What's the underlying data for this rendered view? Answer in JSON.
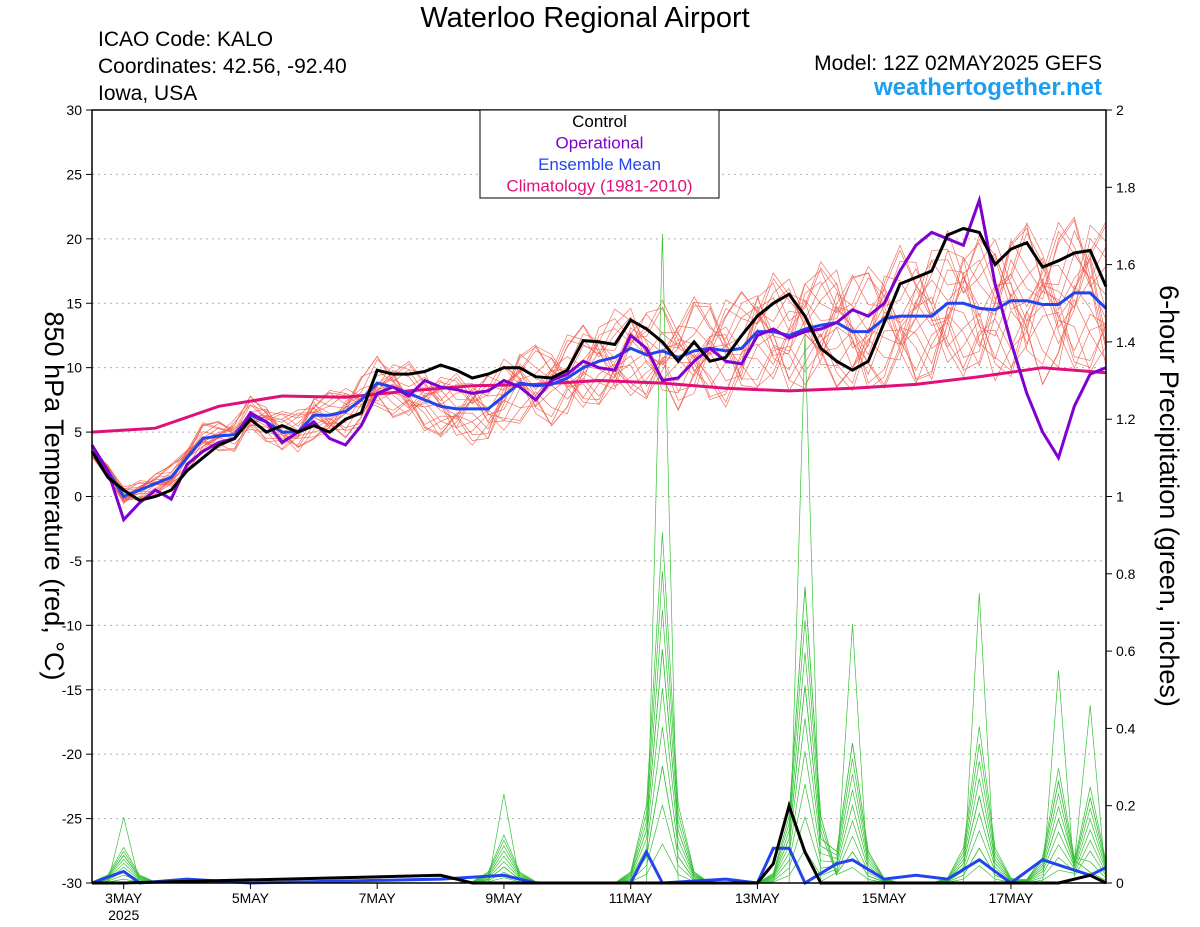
{
  "header": {
    "title": "Waterloo Regional Airport",
    "icao": "ICAO Code: KALO",
    "coords": "Coordinates: 42.56, -92.40",
    "region": "Iowa, USA",
    "model": "Model: 12Z 02MAY2025 GEFS",
    "site": "weathertogether.net"
  },
  "colors": {
    "members": "#f05a4a",
    "precip_members": "#35c235",
    "control": "#000000",
    "operational": "#8000d0",
    "mean": "#2244ee",
    "climatology": "#e0107a"
  },
  "chart_data": {
    "type": "line",
    "ylabel": "850 hPa Temperature (red, °C)",
    "y2label": "6-hour Precipitation (green, inches)",
    "ylim": [
      -30,
      30
    ],
    "y2lim": [
      0,
      2
    ],
    "xlim": [
      "2025-05-02T12:00",
      "2025-05-18T12:00"
    ],
    "yticks": [
      "30",
      "25",
      "20",
      "15",
      "10",
      "5",
      "0",
      "-5",
      "-10",
      "-15",
      "-20",
      "-25",
      "-30"
    ],
    "y2ticks": [
      "2",
      "1.8",
      "1.6",
      "1.4",
      "1.2",
      "1",
      "0.8",
      "0.6",
      "0.4",
      "0.2",
      "0"
    ],
    "xticks": [
      {
        "date": "2025-05-03",
        "label": "3MAY",
        "sub": "2025"
      },
      {
        "date": "2025-05-05",
        "label": "5MAY",
        "sub": ""
      },
      {
        "date": "2025-05-07",
        "label": "7MAY",
        "sub": ""
      },
      {
        "date": "2025-05-09",
        "label": "9MAY",
        "sub": ""
      },
      {
        "date": "2025-05-11",
        "label": "11MAY",
        "sub": ""
      },
      {
        "date": "2025-05-13",
        "label": "13MAY",
        "sub": ""
      },
      {
        "date": "2025-05-15",
        "label": "15MAY",
        "sub": ""
      },
      {
        "date": "2025-05-17",
        "label": "17MAY",
        "sub": ""
      }
    ],
    "grid": true,
    "legend_position": "top-center",
    "legend": [
      "Control",
      "Operational",
      "Ensemble Mean",
      "Climatology (1981-2010)"
    ],
    "temperature": {
      "control": [
        [
          "2025-05-02T12:00",
          3.5
        ],
        [
          "2025-05-02T18:00",
          1.5
        ],
        [
          "2025-05-03T00:00",
          0.5
        ],
        [
          "2025-05-03T06:00",
          -0.3
        ],
        [
          "2025-05-03T12:00",
          0.0
        ],
        [
          "2025-05-03T18:00",
          0.5
        ],
        [
          "2025-05-04T00:00",
          2.0
        ],
        [
          "2025-05-04T06:00",
          3.0
        ],
        [
          "2025-05-04T12:00",
          4.0
        ],
        [
          "2025-05-04T18:00",
          4.5
        ],
        [
          "2025-05-05T00:00",
          6.0
        ],
        [
          "2025-05-05T06:00",
          5.0
        ],
        [
          "2025-05-05T12:00",
          5.5
        ],
        [
          "2025-05-05T18:00",
          5.0
        ],
        [
          "2025-05-06T00:00",
          5.5
        ],
        [
          "2025-05-06T06:00",
          5.0
        ],
        [
          "2025-05-06T12:00",
          6.0
        ],
        [
          "2025-05-06T18:00",
          6.5
        ],
        [
          "2025-05-07T00:00",
          9.8
        ],
        [
          "2025-05-07T06:00",
          9.5
        ],
        [
          "2025-05-07T12:00",
          9.5
        ],
        [
          "2025-05-07T18:00",
          9.7
        ],
        [
          "2025-05-08T00:00",
          10.2
        ],
        [
          "2025-05-08T06:00",
          9.8
        ],
        [
          "2025-05-08T12:00",
          9.2
        ],
        [
          "2025-05-08T18:00",
          9.5
        ],
        [
          "2025-05-09T00:00",
          10.0
        ],
        [
          "2025-05-09T06:00",
          10.0
        ],
        [
          "2025-05-09T12:00",
          9.3
        ],
        [
          "2025-05-09T18:00",
          9.2
        ],
        [
          "2025-05-10T00:00",
          9.8
        ],
        [
          "2025-05-10T06:00",
          12.1
        ],
        [
          "2025-05-10T12:00",
          12.0
        ],
        [
          "2025-05-10T18:00",
          11.8
        ],
        [
          "2025-05-11T00:00",
          13.7
        ],
        [
          "2025-05-11T06:00",
          13.0
        ],
        [
          "2025-05-11T12:00",
          12.0
        ],
        [
          "2025-05-11T18:00",
          10.5
        ],
        [
          "2025-05-12T00:00",
          12.0
        ],
        [
          "2025-05-12T06:00",
          10.5
        ],
        [
          "2025-05-12T12:00",
          10.8
        ],
        [
          "2025-05-12T18:00",
          12.5
        ],
        [
          "2025-05-13T00:00",
          14.0
        ],
        [
          "2025-05-13T06:00",
          15.0
        ],
        [
          "2025-05-13T12:00",
          15.7
        ],
        [
          "2025-05-13T18:00",
          14.0
        ],
        [
          "2025-05-14T00:00",
          11.5
        ],
        [
          "2025-05-14T06:00",
          10.5
        ],
        [
          "2025-05-14T12:00",
          9.8
        ],
        [
          "2025-05-14T18:00",
          10.5
        ],
        [
          "2025-05-15T00:00",
          13.5
        ],
        [
          "2025-05-15T06:00",
          16.5
        ],
        [
          "2025-05-15T12:00",
          17.0
        ],
        [
          "2025-05-15T18:00",
          17.5
        ],
        [
          "2025-05-16T00:00",
          20.3
        ],
        [
          "2025-05-16T06:00",
          20.8
        ],
        [
          "2025-05-16T12:00",
          20.5
        ],
        [
          "2025-05-16T18:00",
          18.0
        ],
        [
          "2025-05-17T00:00",
          19.2
        ],
        [
          "2025-05-17T06:00",
          19.7
        ],
        [
          "2025-05-17T12:00",
          17.8
        ],
        [
          "2025-05-17T18:00",
          18.3
        ],
        [
          "2025-05-18T00:00",
          18.9
        ],
        [
          "2025-05-18T06:00",
          19.1
        ],
        [
          "2025-05-18T12:00",
          16.3
        ]
      ],
      "operational": [
        [
          "2025-05-02T12:00",
          4.0
        ],
        [
          "2025-05-02T18:00",
          2.0
        ],
        [
          "2025-05-03T00:00",
          -1.8
        ],
        [
          "2025-05-03T06:00",
          -0.5
        ],
        [
          "2025-05-03T12:00",
          0.5
        ],
        [
          "2025-05-03T18:00",
          -0.2
        ],
        [
          "2025-05-04T00:00",
          2.5
        ],
        [
          "2025-05-04T06:00",
          3.5
        ],
        [
          "2025-05-04T12:00",
          4.2
        ],
        [
          "2025-05-04T18:00",
          4.5
        ],
        [
          "2025-05-05T00:00",
          6.5
        ],
        [
          "2025-05-05T06:00",
          5.8
        ],
        [
          "2025-05-05T12:00",
          4.2
        ],
        [
          "2025-05-05T18:00",
          5.0
        ],
        [
          "2025-05-06T00:00",
          5.8
        ],
        [
          "2025-05-06T06:00",
          4.5
        ],
        [
          "2025-05-06T12:00",
          4.0
        ],
        [
          "2025-05-06T18:00",
          5.5
        ],
        [
          "2025-05-07T00:00",
          8.0
        ],
        [
          "2025-05-07T06:00",
          8.5
        ],
        [
          "2025-05-07T12:00",
          7.8
        ],
        [
          "2025-05-07T18:00",
          9.0
        ],
        [
          "2025-05-08T00:00",
          8.5
        ],
        [
          "2025-05-08T06:00",
          8.3
        ],
        [
          "2025-05-08T12:00",
          8.0
        ],
        [
          "2025-05-08T18:00",
          8.2
        ],
        [
          "2025-05-09T00:00",
          9.0
        ],
        [
          "2025-05-09T06:00",
          8.5
        ],
        [
          "2025-05-09T12:00",
          7.5
        ],
        [
          "2025-05-09T18:00",
          9.0
        ],
        [
          "2025-05-10T00:00",
          9.5
        ],
        [
          "2025-05-10T06:00",
          10.5
        ],
        [
          "2025-05-10T12:00",
          10.0
        ],
        [
          "2025-05-10T18:00",
          9.8
        ],
        [
          "2025-05-11T00:00",
          12.5
        ],
        [
          "2025-05-11T06:00",
          11.5
        ],
        [
          "2025-05-11T12:00",
          9.0
        ],
        [
          "2025-05-11T18:00",
          9.2
        ],
        [
          "2025-05-12T00:00",
          10.5
        ],
        [
          "2025-05-12T06:00",
          11.5
        ],
        [
          "2025-05-12T12:00",
          10.5
        ],
        [
          "2025-05-12T18:00",
          10.3
        ],
        [
          "2025-05-13T00:00",
          12.5
        ],
        [
          "2025-05-13T06:00",
          13.0
        ],
        [
          "2025-05-13T12:00",
          12.3
        ],
        [
          "2025-05-13T18:00",
          12.8
        ],
        [
          "2025-05-14T00:00",
          13.0
        ],
        [
          "2025-05-14T06:00",
          13.5
        ],
        [
          "2025-05-14T12:00",
          14.5
        ],
        [
          "2025-05-14T18:00",
          14.0
        ],
        [
          "2025-05-15T00:00",
          15.0
        ],
        [
          "2025-05-15T06:00",
          17.5
        ],
        [
          "2025-05-15T12:00",
          19.5
        ],
        [
          "2025-05-15T18:00",
          20.5
        ],
        [
          "2025-05-16T00:00",
          20.0
        ],
        [
          "2025-05-16T06:00",
          19.5
        ],
        [
          "2025-05-16T12:00",
          23.0
        ],
        [
          "2025-05-16T18:00",
          16.5
        ],
        [
          "2025-05-17T00:00",
          12.0
        ],
        [
          "2025-05-17T06:00",
          8.0
        ],
        [
          "2025-05-17T12:00",
          5.0
        ],
        [
          "2025-05-17T18:00",
          3.0
        ],
        [
          "2025-05-18T00:00",
          7.0
        ],
        [
          "2025-05-18T06:00",
          9.5
        ],
        [
          "2025-05-18T12:00",
          10.0
        ]
      ],
      "mean": [
        [
          "2025-05-02T12:00",
          3.5
        ],
        [
          "2025-05-02T18:00",
          2.0
        ],
        [
          "2025-05-03T00:00",
          0.0
        ],
        [
          "2025-05-03T06:00",
          0.5
        ],
        [
          "2025-05-03T12:00",
          1.0
        ],
        [
          "2025-05-03T18:00",
          1.5
        ],
        [
          "2025-05-04T00:00",
          3.0
        ],
        [
          "2025-05-04T06:00",
          4.5
        ],
        [
          "2025-05-04T12:00",
          4.7
        ],
        [
          "2025-05-04T18:00",
          4.8
        ],
        [
          "2025-05-05T00:00",
          6.3
        ],
        [
          "2025-05-05T06:00",
          5.8
        ],
        [
          "2025-05-05T12:00",
          5.0
        ],
        [
          "2025-05-05T18:00",
          5.0
        ],
        [
          "2025-05-06T00:00",
          6.3
        ],
        [
          "2025-05-06T06:00",
          6.3
        ],
        [
          "2025-05-06T12:00",
          6.6
        ],
        [
          "2025-05-06T18:00",
          7.5
        ],
        [
          "2025-05-07T00:00",
          8.8
        ],
        [
          "2025-05-07T06:00",
          8.5
        ],
        [
          "2025-05-07T12:00",
          8.0
        ],
        [
          "2025-05-07T18:00",
          7.5
        ],
        [
          "2025-05-08T00:00",
          7.0
        ],
        [
          "2025-05-08T06:00",
          6.8
        ],
        [
          "2025-05-08T12:00",
          6.8
        ],
        [
          "2025-05-08T18:00",
          6.8
        ],
        [
          "2025-05-09T00:00",
          7.8
        ],
        [
          "2025-05-09T06:00",
          8.8
        ],
        [
          "2025-05-09T12:00",
          8.6
        ],
        [
          "2025-05-09T18:00",
          8.7
        ],
        [
          "2025-05-10T00:00",
          9.2
        ],
        [
          "2025-05-10T06:00",
          10.0
        ],
        [
          "2025-05-10T12:00",
          10.5
        ],
        [
          "2025-05-10T18:00",
          10.8
        ],
        [
          "2025-05-11T00:00",
          11.5
        ],
        [
          "2025-05-11T06:00",
          11.0
        ],
        [
          "2025-05-11T12:00",
          11.3
        ],
        [
          "2025-05-11T18:00",
          10.8
        ],
        [
          "2025-05-12T00:00",
          11.3
        ],
        [
          "2025-05-12T06:00",
          11.5
        ],
        [
          "2025-05-12T12:00",
          11.3
        ],
        [
          "2025-05-12T18:00",
          11.5
        ],
        [
          "2025-05-13T00:00",
          12.8
        ],
        [
          "2025-05-13T06:00",
          12.8
        ],
        [
          "2025-05-13T12:00",
          12.5
        ],
        [
          "2025-05-13T18:00",
          13.0
        ],
        [
          "2025-05-14T00:00",
          13.3
        ],
        [
          "2025-05-14T06:00",
          13.5
        ],
        [
          "2025-05-14T12:00",
          12.8
        ],
        [
          "2025-05-14T18:00",
          12.8
        ],
        [
          "2025-05-15T00:00",
          13.8
        ],
        [
          "2025-05-15T06:00",
          14.0
        ],
        [
          "2025-05-15T12:00",
          14.0
        ],
        [
          "2025-05-15T18:00",
          14.0
        ],
        [
          "2025-05-16T00:00",
          15.0
        ],
        [
          "2025-05-16T06:00",
          15.0
        ],
        [
          "2025-05-16T12:00",
          14.6
        ],
        [
          "2025-05-16T18:00",
          14.5
        ],
        [
          "2025-05-17T00:00",
          15.2
        ],
        [
          "2025-05-17T06:00",
          15.2
        ],
        [
          "2025-05-17T12:00",
          14.9
        ],
        [
          "2025-05-17T18:00",
          14.9
        ],
        [
          "2025-05-18T00:00",
          15.8
        ],
        [
          "2025-05-18T06:00",
          15.8
        ],
        [
          "2025-05-18T12:00",
          14.6
        ]
      ],
      "climatology": [
        [
          "2025-05-02T12:00",
          5.0
        ],
        [
          "2025-05-03T12:00",
          5.3
        ],
        [
          "2025-05-04T12:00",
          7.0
        ],
        [
          "2025-05-05T12:00",
          7.8
        ],
        [
          "2025-05-06T12:00",
          7.7
        ],
        [
          "2025-05-07T12:00",
          8.2
        ],
        [
          "2025-05-08T12:00",
          8.6
        ],
        [
          "2025-05-09T12:00",
          8.7
        ],
        [
          "2025-05-10T12:00",
          9.0
        ],
        [
          "2025-05-11T12:00",
          8.8
        ],
        [
          "2025-05-12T12:00",
          8.4
        ],
        [
          "2025-05-13T12:00",
          8.2
        ],
        [
          "2025-05-14T12:00",
          8.4
        ],
        [
          "2025-05-15T12:00",
          8.7
        ],
        [
          "2025-05-16T12:00",
          9.3
        ],
        [
          "2025-05-17T12:00",
          10.0
        ],
        [
          "2025-05-18T12:00",
          9.6
        ]
      ]
    },
    "precipitation": {
      "control": [
        [
          "2025-05-02T12:00",
          0.0
        ],
        [
          "2025-05-03T00:00",
          0.0
        ],
        [
          "2025-05-08T00:00",
          0.02
        ],
        [
          "2025-05-08T06:00",
          0.01
        ],
        [
          "2025-05-08T12:00",
          0.0
        ],
        [
          "2025-05-13T00:00",
          0.0
        ],
        [
          "2025-05-13T06:00",
          0.05
        ],
        [
          "2025-05-13T12:00",
          0.2
        ],
        [
          "2025-05-13T18:00",
          0.08
        ],
        [
          "2025-05-14T00:00",
          0.0
        ],
        [
          "2025-05-17T18:00",
          0.0
        ],
        [
          "2025-05-18T06:00",
          0.02
        ],
        [
          "2025-05-18T12:00",
          0.0
        ]
      ],
      "mean": [
        [
          "2025-05-02T12:00",
          0.0
        ],
        [
          "2025-05-03T00:00",
          0.03
        ],
        [
          "2025-05-03T06:00",
          0.0
        ],
        [
          "2025-05-04T00:00",
          0.01
        ],
        [
          "2025-05-05T00:00",
          0.0
        ],
        [
          "2025-05-08T00:00",
          0.01
        ],
        [
          "2025-05-09T00:00",
          0.02
        ],
        [
          "2025-05-09T12:00",
          0.0
        ],
        [
          "2025-05-11T00:00",
          0.0
        ],
        [
          "2025-05-11T06:00",
          0.08
        ],
        [
          "2025-05-11T12:00",
          0.0
        ],
        [
          "2025-05-12T12:00",
          0.01
        ],
        [
          "2025-05-13T00:00",
          0.0
        ],
        [
          "2025-05-13T06:00",
          0.09
        ],
        [
          "2025-05-13T12:00",
          0.09
        ],
        [
          "2025-05-13T18:00",
          0.0
        ],
        [
          "2025-05-14T06:00",
          0.05
        ],
        [
          "2025-05-14T12:00",
          0.06
        ],
        [
          "2025-05-15T00:00",
          0.01
        ],
        [
          "2025-05-15T12:00",
          0.02
        ],
        [
          "2025-05-16T00:00",
          0.01
        ],
        [
          "2025-05-16T12:00",
          0.06
        ],
        [
          "2025-05-17T00:00",
          0.0
        ],
        [
          "2025-05-17T12:00",
          0.06
        ],
        [
          "2025-05-18T06:00",
          0.02
        ],
        [
          "2025-05-18T12:00",
          0.04
        ]
      ],
      "member_peaks": [
        [
          "2025-05-03T00:00",
          0.17
        ],
        [
          "2025-05-09T00:00",
          0.23
        ],
        [
          "2025-05-11T12:00",
          1.68
        ],
        [
          "2025-05-13T18:00",
          1.42
        ],
        [
          "2025-05-14T12:00",
          0.67
        ],
        [
          "2025-05-16T12:00",
          0.75
        ],
        [
          "2025-05-17T18:00",
          0.55
        ],
        [
          "2025-05-18T06:00",
          0.46
        ]
      ]
    }
  }
}
